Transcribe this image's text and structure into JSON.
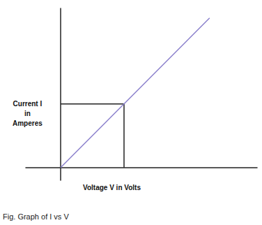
{
  "chart_data": {
    "type": "line",
    "xlabel": "Voltage V in Volts",
    "ylabel": "Current I\nin\nAmperes",
    "caption": "Fig. Graph of I vs V",
    "x": [
      0,
      4.7
    ],
    "values": [
      0,
      4.7
    ],
    "color": "#8b80cc",
    "highlight": {
      "x": 2,
      "y": 2
    },
    "xlim": [
      -1.1,
      6.2
    ],
    "ylim": [
      -0.4,
      5
    ],
    "tick_labels": false,
    "grid": false
  }
}
